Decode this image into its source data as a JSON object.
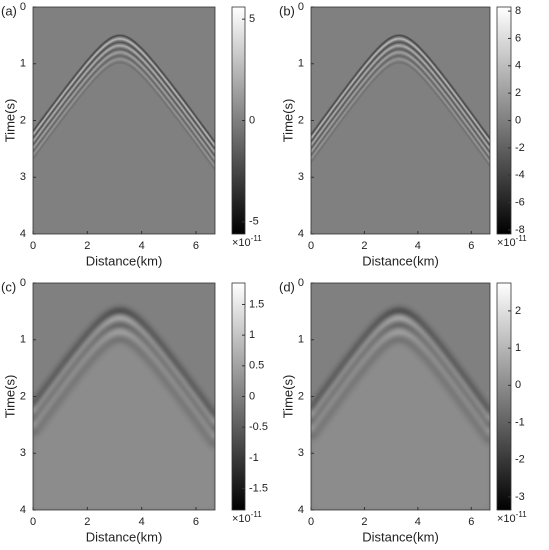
{
  "chart_data": [
    {
      "type": "image",
      "label": "(a)",
      "x_label": "Distance(km)",
      "y_label": "Time(s)",
      "xlim": [
        0,
        6.7
      ],
      "xticks": [
        0,
        2,
        4,
        6
      ],
      "ylim": [
        0,
        4
      ],
      "y_inverted": true,
      "yticks": [
        0,
        1,
        2,
        3,
        4
      ],
      "colormap": "gray",
      "colorbar": {
        "clim": [
          -5.6,
          5.6
        ],
        "ticks": [
          -5,
          0,
          5
        ],
        "multiplier": "×10",
        "exponent": "-11"
      }
    },
    {
      "type": "image",
      "label": "(b)",
      "x_label": "Distance(km)",
      "y_label": "Time(s)",
      "xlim": [
        0,
        6.7
      ],
      "xticks": [
        0,
        2,
        4,
        6
      ],
      "ylim": [
        0,
        4
      ],
      "y_inverted": true,
      "yticks": [
        0,
        1,
        2,
        3,
        4
      ],
      "colormap": "gray",
      "colorbar": {
        "clim": [
          -8.3,
          8.3
        ],
        "ticks": [
          -8,
          -6,
          -4,
          -2,
          0,
          2,
          4,
          6,
          8
        ],
        "multiplier": "×10",
        "exponent": "-11"
      }
    },
    {
      "type": "image",
      "label": "(c)",
      "x_label": "Distance(km)",
      "y_label": "Time(s)",
      "xlim": [
        0,
        6.7
      ],
      "xticks": [
        0,
        2,
        4,
        6
      ],
      "ylim": [
        0,
        4
      ],
      "y_inverted": true,
      "yticks": [
        0,
        1,
        2,
        3,
        4
      ],
      "colormap": "gray",
      "colorbar": {
        "clim": [
          -1.85,
          1.85
        ],
        "ticks": [
          -1.5,
          -1,
          -0.5,
          0,
          0.5,
          1,
          1.5
        ],
        "multiplier": "×10",
        "exponent": "-11"
      }
    },
    {
      "type": "image",
      "label": "(d)",
      "x_label": "Distance(km)",
      "y_label": "Time(s)",
      "xlim": [
        0,
        6.7
      ],
      "xticks": [
        0,
        2,
        4,
        6
      ],
      "ylim": [
        0,
        4
      ],
      "y_inverted": true,
      "yticks": [
        0,
        1,
        2,
        3,
        4
      ],
      "colormap": "gray",
      "colorbar": {
        "clim": [
          -3.35,
          2.75
        ],
        "ticks": [
          -3,
          -2,
          -1,
          0,
          1,
          2
        ],
        "multiplier": "×10",
        "exponent": "-11"
      }
    }
  ]
}
